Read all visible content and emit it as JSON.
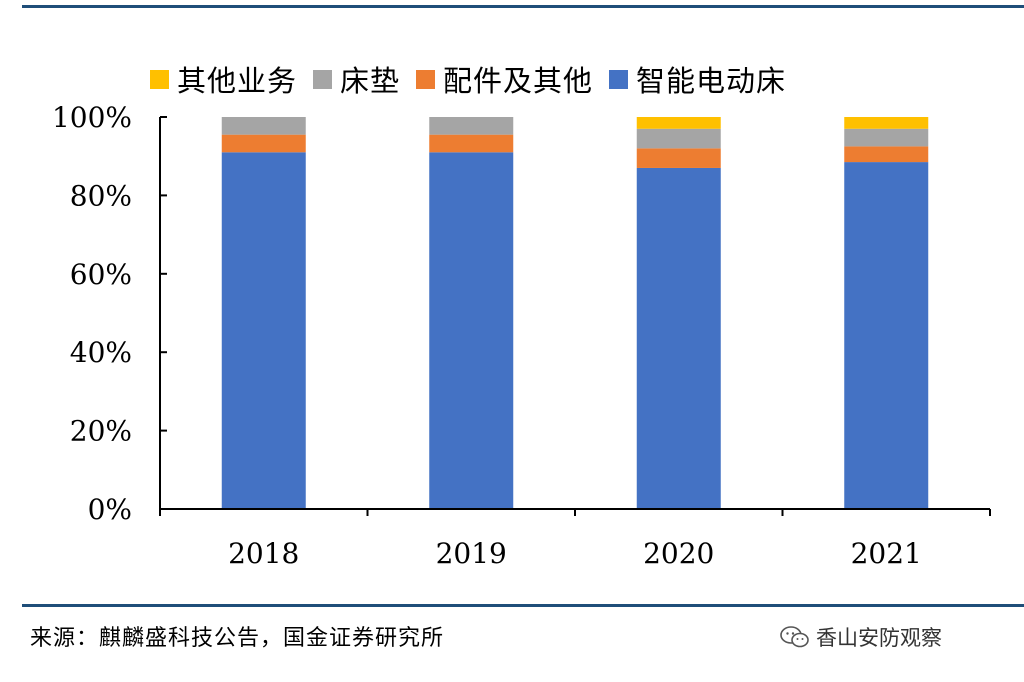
{
  "chart_data": {
    "type": "bar",
    "stacked": true,
    "categories": [
      "2018",
      "2019",
      "2020",
      "2021"
    ],
    "series": [
      {
        "name": "智能电动床",
        "color": "#4472c4",
        "values": [
          91,
          91,
          87,
          88.5
        ]
      },
      {
        "name": "配件及其他",
        "color": "#ed7d31",
        "values": [
          4.5,
          4.5,
          5,
          4
        ]
      },
      {
        "name": "床垫",
        "color": "#a5a5a5",
        "values": [
          4.5,
          4.5,
          5,
          4.5
        ]
      },
      {
        "name": "其他业务",
        "color": "#ffc000",
        "values": [
          0,
          0,
          3,
          3
        ]
      }
    ],
    "legend_order": [
      "其他业务",
      "床垫",
      "配件及其他",
      "智能电动床"
    ],
    "legend_placement": "top",
    "ylim": [
      0,
      100
    ],
    "yticks": [
      "0%",
      "20%",
      "40%",
      "60%",
      "80%",
      "100%"
    ],
    "ytick_values": [
      0,
      20,
      40,
      60,
      80,
      100
    ],
    "grid": false
  },
  "source": "来源：麒麟盛科技公告，国金证券研究所",
  "brand_watermark": "香山安防观察",
  "colors": {
    "rule": "#1f4e79"
  }
}
